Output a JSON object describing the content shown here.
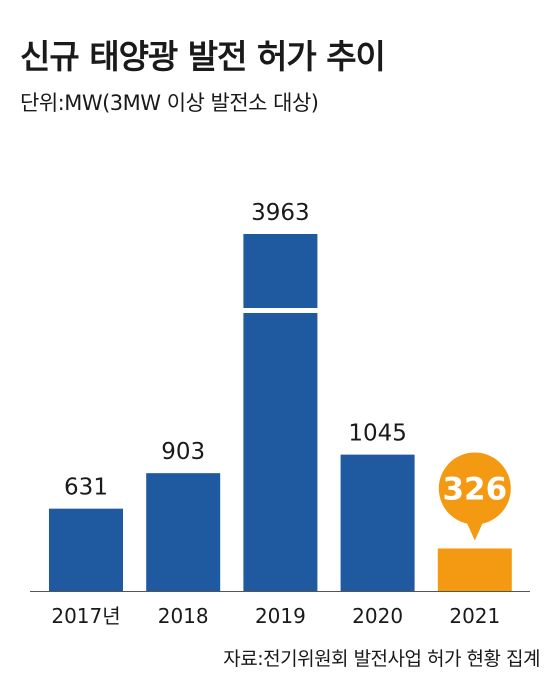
{
  "header": {
    "title": "신규 태양광 발전 허가 추이",
    "unit_note": "단위:MW(3MW 이상 발전소 대상)"
  },
  "footer": {
    "source": "자료:전기위원회 발전사업 허가 현황 집계"
  },
  "colors": {
    "bar": "#1f5aa0",
    "highlight": "#f39a12",
    "text": "#1a1a1a",
    "baseline": "#555555"
  },
  "chart_data": {
    "type": "bar",
    "categories": [
      "2017년",
      "2018",
      "2019",
      "2020",
      "2021"
    ],
    "values": [
      631,
      903,
      3963,
      1045,
      326
    ],
    "data_labels": [
      "631",
      "903",
      "3963",
      "1045",
      "326"
    ],
    "highlight_index": 4,
    "axis_break": {
      "category_index": 2
    },
    "title": "",
    "xlabel": "",
    "ylabel": "",
    "grid": false
  }
}
